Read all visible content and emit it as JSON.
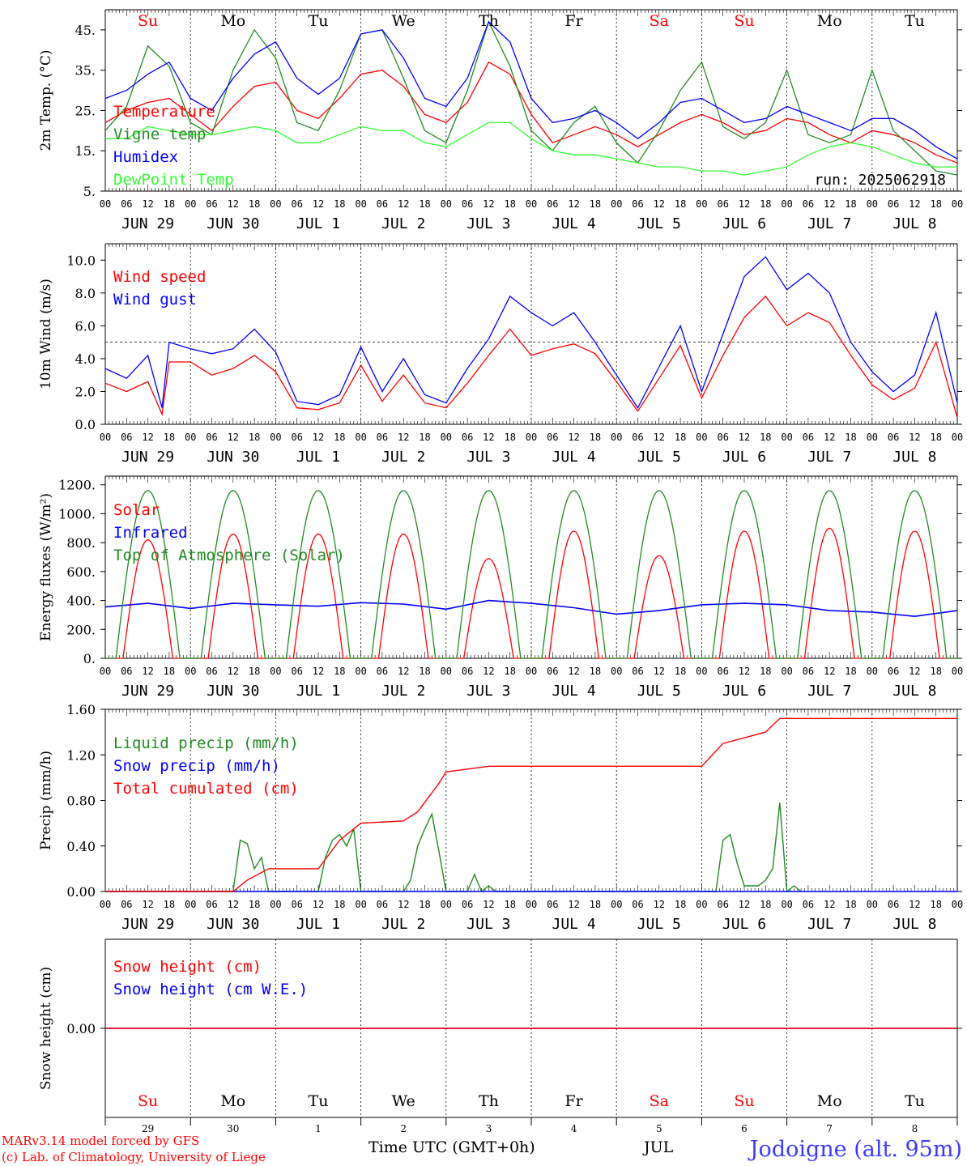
{
  "run_label": "run: 2025062918",
  "days": [
    "Su",
    "Mo",
    "Tu",
    "We",
    "Th",
    "Fr",
    "Sa",
    "Su",
    "Mo",
    "Tu"
  ],
  "day_colors": [
    "#ff0000",
    "#000000",
    "#000000",
    "#000000",
    "#000000",
    "#000000",
    "#ff0000",
    "#ff0000",
    "#000000",
    "#000000"
  ],
  "dates": [
    "JUN 29",
    "JUN 30",
    "JUL  1",
    "JUL  2",
    "JUL  3",
    "JUL  4",
    "JUL  5",
    "JUL  6",
    "JUL  7",
    "JUL  8"
  ],
  "hour_ticks": [
    "00",
    "06",
    "12",
    "18"
  ],
  "bottom_dates": [
    "29",
    "30",
    "1",
    "2",
    "3",
    "4",
    "5",
    "6",
    "7",
    "8"
  ],
  "bottom_month": "JUL",
  "x_title": "Time UTC (GMT+0h)",
  "station": "Jodoigne (alt. 95m)",
  "credits": [
    "MARv3.14 model forced by GFS",
    "(c) Lab. of Climatology, University of Liege"
  ],
  "chart_data": [
    {
      "type": "line",
      "ylabel": "2m Temp. (°C)",
      "ylim": [
        5,
        50
      ],
      "yticks": [
        "5.",
        "15.",
        "25.",
        "35.",
        "45."
      ],
      "ytick_values": [
        5,
        15,
        25,
        35,
        45
      ],
      "legend_placement": "top-left",
      "x_unit": "hours since JUN 29 00 UTC",
      "series": [
        {
          "name": "Temperature",
          "color": "#ff0000",
          "x": [
            0,
            6,
            12,
            18,
            24,
            30,
            36,
            42,
            48,
            54,
            60,
            66,
            72,
            78,
            84,
            90,
            96,
            102,
            108,
            114,
            120,
            126,
            132,
            138,
            144,
            150,
            156,
            162,
            168,
            174,
            180,
            186,
            192,
            198,
            204,
            210,
            216,
            222,
            228,
            234,
            240
          ],
          "values": [
            22,
            25,
            27,
            28,
            24,
            20,
            26,
            31,
            32,
            25,
            23,
            28,
            34,
            35,
            31,
            24,
            22,
            27,
            37,
            34,
            24,
            17,
            19,
            21,
            19,
            16,
            19,
            22,
            24,
            22,
            19,
            20,
            23,
            22,
            19,
            17,
            20,
            19,
            17,
            14,
            12
          ]
        },
        {
          "name": "Vigne temp",
          "color": "#228b22",
          "x": [
            0,
            6,
            12,
            18,
            24,
            30,
            36,
            42,
            48,
            54,
            60,
            66,
            72,
            78,
            84,
            90,
            96,
            102,
            108,
            114,
            120,
            126,
            132,
            138,
            144,
            150,
            156,
            162,
            168,
            174,
            180,
            186,
            192,
            198,
            204,
            210,
            216,
            222,
            228,
            234,
            240
          ],
          "values": [
            20,
            26,
            41,
            36,
            22,
            19,
            35,
            45,
            38,
            22,
            20,
            30,
            44,
            45,
            33,
            20,
            17,
            30,
            47,
            36,
            20,
            15,
            22,
            26,
            17,
            12,
            20,
            30,
            37,
            21,
            18,
            22,
            35,
            19,
            17,
            19,
            35,
            20,
            15,
            10,
            9
          ]
        },
        {
          "name": "Humidex",
          "color": "#0000ff",
          "x": [
            0,
            6,
            12,
            18,
            24,
            30,
            36,
            42,
            48,
            54,
            60,
            66,
            72,
            78,
            84,
            90,
            96,
            102,
            108,
            114,
            120,
            126,
            132,
            138,
            144,
            150,
            156,
            162,
            168,
            174,
            180,
            186,
            192,
            198,
            204,
            210,
            216,
            222,
            228,
            234,
            240
          ],
          "values": [
            28,
            30,
            34,
            37,
            28,
            25,
            33,
            39,
            42,
            33,
            29,
            33,
            44,
            45,
            38,
            28,
            26,
            33,
            47,
            42,
            28,
            22,
            23,
            25,
            22,
            18,
            22,
            27,
            28,
            25,
            22,
            23,
            26,
            24,
            22,
            20,
            23,
            23,
            20,
            16,
            13
          ]
        },
        {
          "name": "DewPoint Temp",
          "color": "#33ff33",
          "x": [
            0,
            6,
            12,
            18,
            24,
            30,
            36,
            42,
            48,
            54,
            60,
            66,
            72,
            78,
            84,
            90,
            96,
            102,
            108,
            114,
            120,
            126,
            132,
            138,
            144,
            150,
            156,
            162,
            168,
            174,
            180,
            186,
            192,
            198,
            204,
            210,
            216,
            222,
            228,
            234,
            240
          ],
          "values": [
            18,
            18,
            21,
            20,
            19,
            19,
            20,
            21,
            20,
            17,
            17,
            19,
            21,
            20,
            20,
            17,
            16,
            19,
            22,
            22,
            18,
            15,
            14,
            14,
            13,
            12,
            11,
            11,
            10,
            10,
            9,
            10,
            11,
            14,
            16,
            17,
            16,
            14,
            12,
            11,
            11
          ]
        }
      ]
    },
    {
      "type": "line",
      "ylabel": "10m Wind (m/s)",
      "ylim": [
        0,
        11
      ],
      "yticks": [
        "0.0",
        "2.0",
        "4.0",
        "6.0",
        "8.0",
        "10.0"
      ],
      "ytick_values": [
        0,
        2,
        4,
        6,
        8,
        10
      ],
      "reference_line": 5,
      "legend_placement": "top-left",
      "x_unit": "hours since JUN 29 00 UTC",
      "series": [
        {
          "name": "Wind speed",
          "color": "#ff0000",
          "x": [
            0,
            6,
            12,
            16,
            18,
            24,
            30,
            36,
            42,
            48,
            54,
            60,
            66,
            72,
            78,
            84,
            90,
            96,
            102,
            108,
            114,
            120,
            126,
            132,
            138,
            144,
            150,
            156,
            162,
            168,
            174,
            180,
            186,
            192,
            198,
            204,
            210,
            216,
            222,
            228,
            234,
            240
          ],
          "values": [
            2.5,
            2.0,
            2.6,
            0.6,
            3.8,
            3.8,
            3.0,
            3.4,
            4.2,
            3.2,
            1.0,
            0.9,
            1.3,
            3.6,
            1.4,
            3.0,
            1.3,
            1.0,
            2.5,
            4.2,
            5.8,
            4.2,
            4.6,
            4.9,
            4.3,
            2.6,
            0.8,
            2.8,
            4.8,
            1.6,
            4.2,
            6.5,
            7.8,
            6.0,
            6.8,
            6.2,
            4.2,
            2.4,
            1.5,
            2.2,
            5.0,
            0.4
          ]
        },
        {
          "name": "Wind gust",
          "color": "#0000ff",
          "x": [
            0,
            6,
            12,
            16,
            18,
            24,
            30,
            36,
            42,
            48,
            54,
            60,
            66,
            72,
            78,
            84,
            90,
            96,
            102,
            108,
            114,
            120,
            126,
            132,
            138,
            144,
            150,
            156,
            162,
            168,
            174,
            180,
            186,
            192,
            198,
            204,
            210,
            216,
            222,
            228,
            234,
            240
          ],
          "values": [
            3.4,
            2.8,
            4.2,
            1.0,
            5.0,
            4.6,
            4.3,
            4.6,
            5.8,
            4.4,
            1.4,
            1.2,
            1.8,
            4.7,
            2.0,
            4.0,
            1.8,
            1.3,
            3.4,
            5.2,
            7.8,
            6.8,
            6.0,
            6.8,
            5.0,
            3.0,
            1.0,
            3.5,
            6.0,
            2.0,
            5.5,
            9.0,
            10.2,
            8.2,
            9.2,
            8.0,
            5.0,
            3.2,
            2.0,
            3.0,
            6.8,
            1.3
          ]
        }
      ]
    },
    {
      "type": "line",
      "ylabel": "Energy fluxes (W/m²)",
      "ylim": [
        0,
        1260
      ],
      "yticks": [
        "0.",
        "200.",
        "400.",
        "600.",
        "800.",
        "1000.",
        "1200."
      ],
      "ytick_values": [
        0,
        200,
        400,
        600,
        800,
        1000,
        1200
      ],
      "legend_placement": "top-left",
      "x_unit": "hours since JUN 29 00 UTC",
      "series": [
        {
          "name": "Solar",
          "color": "#ff0000",
          "diurnal_peaks": [
            820,
            860,
            860,
            860,
            690,
            880,
            710,
            880,
            900,
            880
          ]
        },
        {
          "name": "Infrared",
          "color": "#0000ff",
          "x": [
            0,
            12,
            24,
            36,
            48,
            60,
            72,
            84,
            96,
            108,
            120,
            132,
            144,
            156,
            168,
            180,
            192,
            204,
            216,
            228,
            240
          ],
          "values": [
            355,
            380,
            345,
            380,
            370,
            360,
            385,
            375,
            340,
            400,
            380,
            350,
            305,
            330,
            370,
            380,
            370,
            330,
            320,
            290,
            330
          ]
        },
        {
          "name": "Top of Atmosphere (Solar)",
          "color": "#228b22",
          "diurnal_peaks": [
            1160,
            1160,
            1160,
            1160,
            1160,
            1160,
            1160,
            1160,
            1160,
            1160
          ]
        }
      ]
    },
    {
      "type": "line",
      "ylabel": "Precip (mm/h)",
      "ylim": [
        0,
        1.6
      ],
      "yticks": [
        "0.00",
        "0.40",
        "0.80",
        "1.20",
        "1.60"
      ],
      "ytick_values": [
        0,
        0.4,
        0.8,
        1.2,
        1.6
      ],
      "legend_placement": "top-left",
      "x_unit": "hours since JUN 29 00 UTC",
      "series": [
        {
          "name": "Liquid precip (mm/h)",
          "color": "#228b22",
          "x": [
            0,
            36,
            38,
            40,
            42,
            44,
            46,
            48,
            60,
            62,
            64,
            66,
            68,
            70,
            72,
            84,
            86,
            88,
            90,
            92,
            94,
            96,
            102,
            104,
            106,
            108,
            110,
            112,
            114,
            120,
            128,
            172,
            174,
            176,
            178,
            180,
            184,
            186,
            188,
            190,
            192,
            194,
            196
          ],
          "values": [
            0,
            0,
            0.45,
            0.42,
            0.2,
            0.3,
            0,
            0,
            0,
            0.3,
            0.45,
            0.5,
            0.4,
            0.55,
            0,
            0,
            0.1,
            0.4,
            0.55,
            0.68,
            0.35,
            0,
            0,
            0.15,
            0,
            0.05,
            0,
            0,
            0,
            0,
            0,
            0,
            0.45,
            0.5,
            0.25,
            0.05,
            0.05,
            0.1,
            0.2,
            0.78,
            0,
            0.05,
            0
          ]
        },
        {
          "name": "Snow precip (mm/h)",
          "color": "#0000ff",
          "x": [
            0,
            240
          ],
          "values": [
            0,
            0
          ]
        },
        {
          "name": "Total cumulated (cm)",
          "color": "#ff0000",
          "x": [
            0,
            36,
            40,
            46,
            60,
            66,
            72,
            84,
            88,
            94,
            96,
            108,
            132,
            168,
            174,
            180,
            186,
            190,
            192,
            240
          ],
          "values": [
            0,
            0,
            0.1,
            0.2,
            0.2,
            0.45,
            0.6,
            0.62,
            0.7,
            0.95,
            1.05,
            1.1,
            1.1,
            1.1,
            1.3,
            1.35,
            1.4,
            1.52,
            1.52,
            1.52
          ]
        }
      ]
    },
    {
      "type": "line",
      "ylabel": "Snow height (cm)",
      "ylim": [
        -1,
        1
      ],
      "yticks": [
        "0.00"
      ],
      "ytick_values": [
        0
      ],
      "legend_placement": "top-left",
      "x_unit": "hours since JUN 29 00 UTC",
      "series": [
        {
          "name": "Snow height (cm)",
          "color": "#ff0000",
          "x": [
            0,
            240
          ],
          "values": [
            0,
            0
          ]
        },
        {
          "name": "Snow height (cm W.E.)",
          "color": "#0000ff",
          "x": [
            0,
            240
          ],
          "values": [
            0,
            0
          ]
        }
      ]
    }
  ]
}
